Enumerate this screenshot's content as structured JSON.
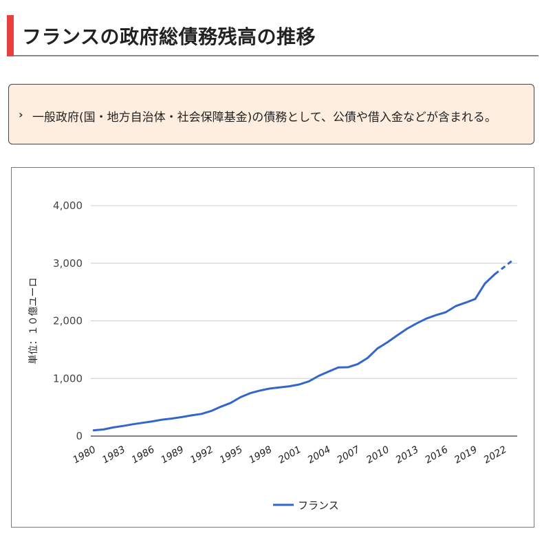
{
  "header": {
    "title": "フランスの政府総債務残高の推移"
  },
  "note": {
    "bullet": "›",
    "text": "一般政府(国・地方自治体・社会保障基金)の債務として、公債や借入金などが含まれる。"
  },
  "colors": {
    "accent": "#e8403c",
    "line": "#3366cc",
    "grid": "#cccccc",
    "note_bg": "#fdeee0"
  },
  "chart_data": {
    "type": "line",
    "ylabel": "単位：１０億ユーロ",
    "ylim": [
      0,
      4000
    ],
    "yticks": [
      0,
      1000,
      2000,
      3000,
      4000
    ],
    "ytick_labels": [
      "0",
      "1,000",
      "2,000",
      "3,000",
      "4,000"
    ],
    "xticks": [
      1980,
      1983,
      1986,
      1989,
      1992,
      1995,
      1998,
      2001,
      2004,
      2007,
      2010,
      2013,
      2016,
      2019,
      2022
    ],
    "x": [
      1980,
      1981,
      1982,
      1983,
      1984,
      1985,
      1986,
      1987,
      1988,
      1989,
      1990,
      1991,
      1992,
      1993,
      1994,
      1995,
      1996,
      1997,
      1998,
      1999,
      2000,
      2001,
      2002,
      2003,
      2004,
      2005,
      2006,
      2007,
      2008,
      2009,
      2010,
      2011,
      2012,
      2013,
      2014,
      2015,
      2016,
      2017,
      2018,
      2019,
      2020,
      2021,
      2022,
      2023
    ],
    "series": [
      {
        "name": "フランス",
        "values": [
          100,
          115,
          150,
          175,
          205,
          230,
          255,
          285,
          305,
          330,
          360,
          385,
          435,
          510,
          575,
          675,
          745,
          790,
          825,
          845,
          865,
          895,
          950,
          1045,
          1120,
          1190,
          1195,
          1250,
          1355,
          1520,
          1625,
          1745,
          1860,
          1955,
          2040,
          2100,
          2150,
          2255,
          2315,
          2380,
          2650,
          2810,
          2940,
          3075
        ],
        "estimated_from": 2021
      }
    ],
    "legend": "bottom",
    "grid": true
  }
}
